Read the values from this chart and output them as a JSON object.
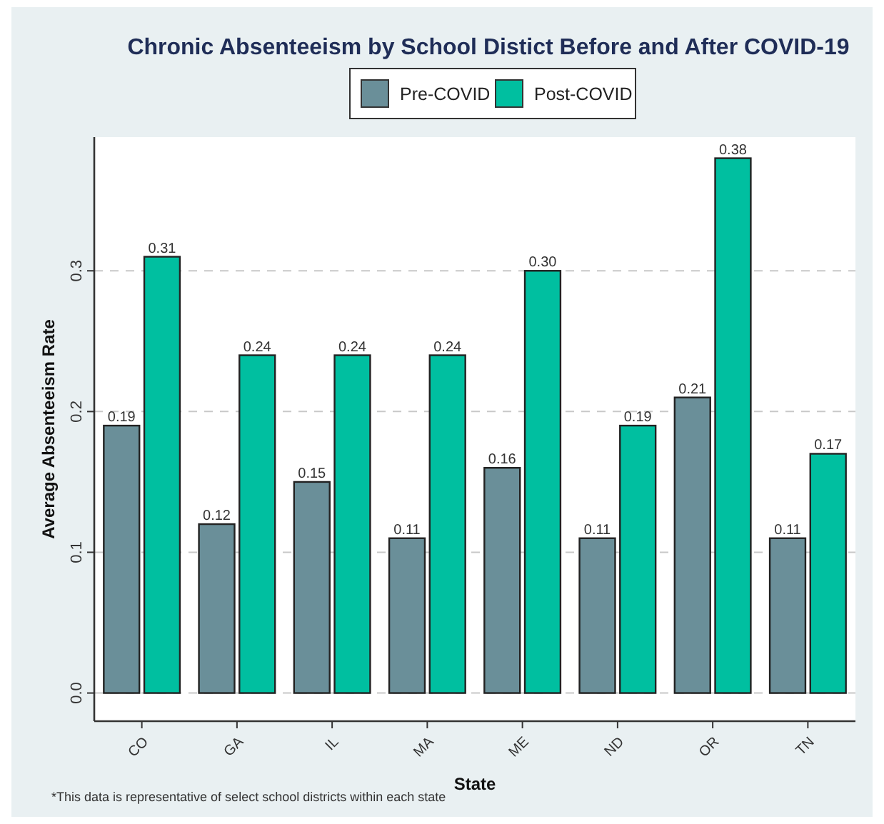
{
  "chart_data": {
    "type": "bar",
    "title": "Chronic Absenteeism by School Distict Before and After COVID-19",
    "xlabel": "State",
    "ylabel": "Average Absenteeism Rate",
    "categories": [
      "CO",
      "GA",
      "IL",
      "MA",
      "ME",
      "ND",
      "OR",
      "TN"
    ],
    "series": [
      {
        "name": "Pre-COVID",
        "color": "#6a8f99",
        "values": [
          0.19,
          0.12,
          0.15,
          0.11,
          0.16,
          0.11,
          0.21,
          0.11
        ],
        "value_labels": [
          "0.19",
          "0.12",
          "0.15",
          "0.11",
          "0.16",
          "0.11",
          "0.21",
          "0.11"
        ]
      },
      {
        "name": "Post-COVID",
        "color": "#00bfa0",
        "values": [
          0.31,
          0.24,
          0.24,
          0.24,
          0.3,
          0.19,
          0.38,
          0.17
        ],
        "value_labels": [
          "0.31",
          "0.24",
          "0.24",
          "0.24",
          "0.30",
          "0.19",
          "0.38",
          "0.17"
        ]
      }
    ],
    "ylim": [
      -0.02,
      0.395
    ],
    "yticks": [
      {
        "value": 0,
        "label": "0.0"
      },
      0.1,
      0.2,
      0.3
    ],
    "grid": "y",
    "legend": "top",
    "annotations": [
      "*This data is representative of select school districts within each state"
    ]
  }
}
